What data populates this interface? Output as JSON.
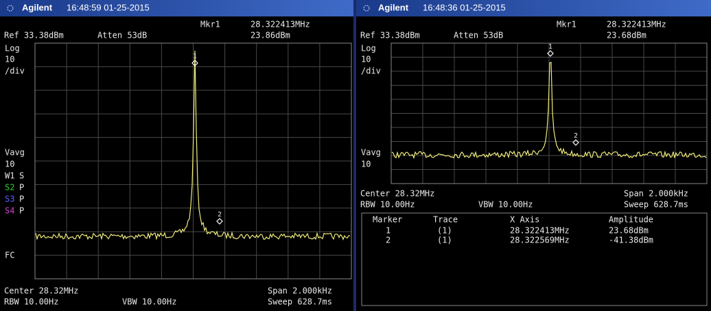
{
  "panels": [
    {
      "brand": "Agilent",
      "timestamp": "16:48:59 01-25-2015",
      "marker_label": "Mkr1",
      "marker_freq": "28.322413MHz",
      "ref": "Ref 33.38dBm",
      "atten": "Atten 53dB",
      "marker_amp": "23.86dBm",
      "side_labels": [
        [
          "Log"
        ],
        [
          "10"
        ],
        [
          "/div"
        ],
        [
          "Vavg"
        ],
        [
          "10"
        ],
        [
          "W1",
          "S"
        ],
        [
          "S2",
          "P"
        ],
        [
          "S3",
          "P"
        ],
        [
          "S4",
          "P"
        ],
        [
          "FC"
        ]
      ],
      "markers": [
        "1",
        "2"
      ],
      "center": "Center 28.32MHz",
      "span": "Span 2.000kHz",
      "rbw": "RBW 10.00Hz",
      "vbw": "VBW 10.00Hz",
      "sweep": "Sweep 628.7ms"
    },
    {
      "brand": "Agilent",
      "timestamp": "16:48:36 01-25-2015",
      "marker_label": "Mkr1",
      "marker_freq": "28.322413MHz",
      "ref": "Ref 33.38dBm",
      "atten": "Atten 53dB",
      "marker_amp": "23.68dBm",
      "side_labels": [
        [
          "Log"
        ],
        [
          "10"
        ],
        [
          "/div"
        ],
        [
          "Vavg"
        ],
        [
          "10"
        ]
      ],
      "markers": [
        "1",
        "2"
      ],
      "center": "Center 28.32MHz",
      "span": "Span 2.000kHz",
      "rbw": "RBW 10.00Hz",
      "vbw": "VBW 10.00Hz",
      "sweep": "Sweep 628.7ms",
      "marker_table": {
        "headers": [
          "Marker",
          "Trace",
          "X Axis",
          "Amplitude"
        ],
        "rows": [
          [
            "1",
            "(1)",
            "28.322413MHz",
            "23.68dBm"
          ],
          [
            "2",
            "(1)",
            "28.322569MHz",
            "-41.38dBm"
          ]
        ]
      }
    }
  ]
}
